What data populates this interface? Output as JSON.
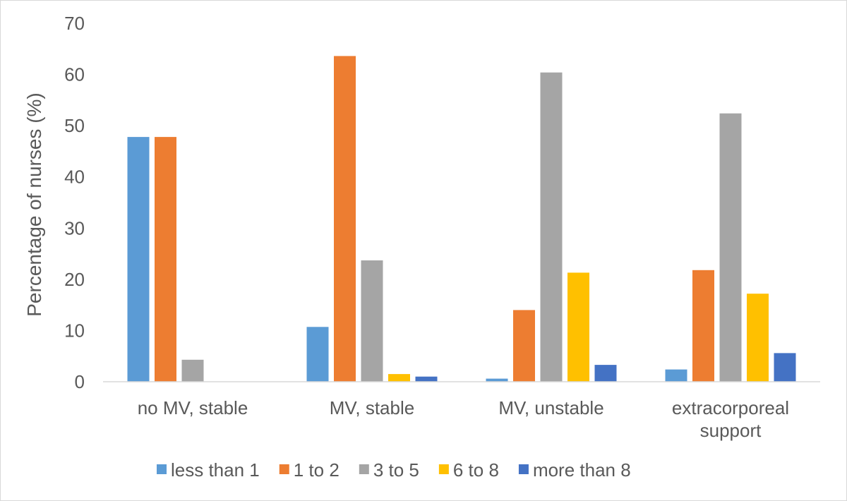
{
  "chart_data": {
    "type": "bar",
    "title": "",
    "xlabel": "",
    "ylabel": "Percentage of nurses (%)",
    "ylim": [
      0,
      70
    ],
    "yticks": [
      0,
      10,
      20,
      30,
      40,
      50,
      60,
      70
    ],
    "grid": false,
    "legend_position": "bottom",
    "categories": [
      [
        "no MV, stable"
      ],
      [
        "MV, stable"
      ],
      [
        "MV, unstable"
      ],
      [
        "extracorporeal",
        "support"
      ]
    ],
    "series": [
      {
        "name": "less than 1",
        "color": "#5B9BD5",
        "values": [
          47.8,
          10.7,
          0.6,
          2.4
        ]
      },
      {
        "name": "1 to 2",
        "color": "#ED7D31",
        "values": [
          47.8,
          63.6,
          14.0,
          21.8
        ]
      },
      {
        "name": "3 to 5",
        "color": "#A5A5A5",
        "values": [
          4.3,
          23.7,
          60.4,
          52.4
        ]
      },
      {
        "name": "6 to 8",
        "color": "#FFC000",
        "values": [
          0,
          1.5,
          21.3,
          17.2
        ]
      },
      {
        "name": "more than 8",
        "color": "#4472C4",
        "values": [
          0,
          1.0,
          3.3,
          5.6
        ]
      }
    ]
  }
}
